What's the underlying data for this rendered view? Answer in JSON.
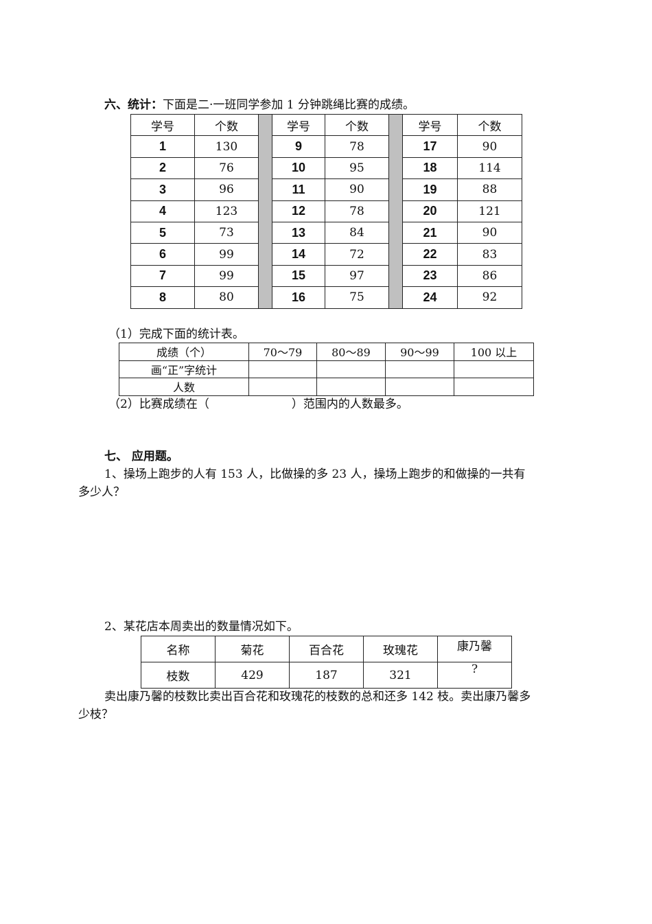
{
  "section6": {
    "heading": "六、统计：",
    "intro": "下面是二·一班同学参加 1 分钟跳绳比赛的成绩。",
    "scores_table": {
      "headers": [
        "学号",
        "个数"
      ],
      "rows": [
        [
          [
            "1",
            "130"
          ],
          [
            "9",
            "78"
          ],
          [
            "17",
            "90"
          ]
        ],
        [
          [
            "2",
            "76"
          ],
          [
            "10",
            "95"
          ],
          [
            "18",
            "114"
          ]
        ],
        [
          [
            "3",
            "96"
          ],
          [
            "11",
            "90"
          ],
          [
            "19",
            "88"
          ]
        ],
        [
          [
            "4",
            "123"
          ],
          [
            "12",
            "78"
          ],
          [
            "20",
            "121"
          ]
        ],
        [
          [
            "5",
            "73"
          ],
          [
            "13",
            "84"
          ],
          [
            "21",
            "90"
          ]
        ],
        [
          [
            "6",
            "99"
          ],
          [
            "14",
            "72"
          ],
          [
            "22",
            "83"
          ]
        ],
        [
          [
            "7",
            "99"
          ],
          [
            "15",
            "97"
          ],
          [
            "23",
            "86"
          ]
        ],
        [
          [
            "8",
            "80"
          ],
          [
            "16",
            "75"
          ],
          [
            "24",
            "92"
          ]
        ]
      ]
    },
    "q1": "（1）完成下面的统计表。",
    "tally_table": {
      "header": [
        "成绩（个）",
        "70～79",
        "80～89",
        "90～99",
        "100 以上"
      ],
      "row_labels": [
        "画“正”字统计",
        "人数"
      ]
    },
    "q2_before": "（2）比赛成绩在（",
    "q2_after": "）范围内的人数最多。"
  },
  "section7": {
    "heading": "七、 应用题。",
    "p1_line1": "1、操场上跑步的人有 153 人，比做操的多 23 人，操场上跑步的和做操的一共有",
    "p1_line2": "多少人？",
    "p2_intro": "2、某花店本周卖出的数量情况如下。",
    "flower_table": {
      "header": [
        "名称",
        "菊花",
        "百合花",
        "玫瑰花",
        "康乃馨"
      ],
      "row": [
        "枝数",
        "429",
        "187",
        "321",
        "?"
      ]
    },
    "p2_line1": "卖出康乃馨的枝数比卖出百合花和玫瑰花的枝数的总和还多 142 枝。卖出康乃馨多",
    "p2_line2": "少枝？"
  }
}
